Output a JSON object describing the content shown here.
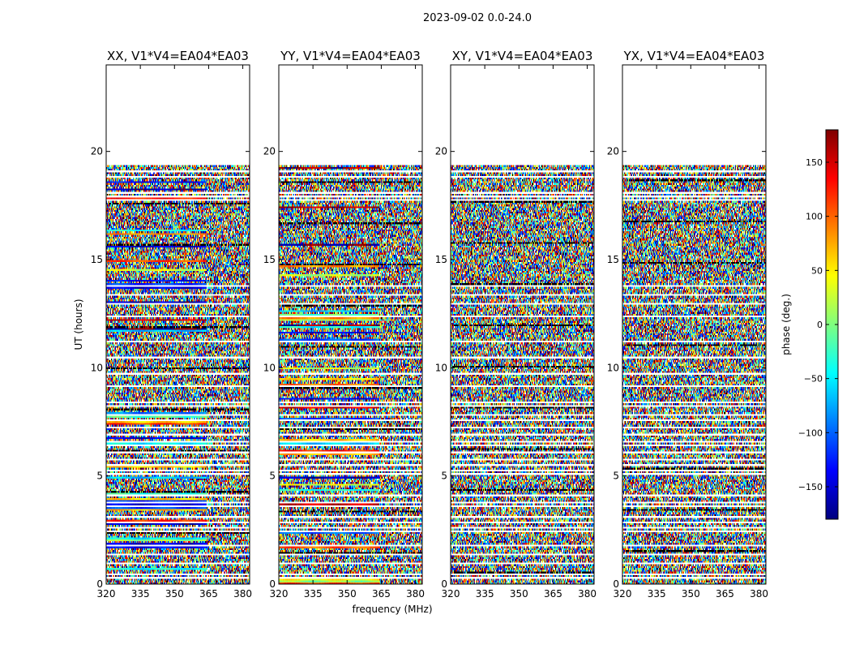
{
  "chart_data": {
    "type": "heatmap",
    "suptitle": "2023-09-02 0.0-24.0",
    "xlabel": "frequency (MHz)",
    "ylabel": "UT (hours)",
    "xlim": [
      320,
      383
    ],
    "ylim": [
      0,
      24
    ],
    "xticks": [
      320,
      335,
      350,
      365,
      380
    ],
    "yticks": [
      0,
      5,
      10,
      15,
      20
    ],
    "data_end_hours": 19.4,
    "flagged_rows_hours": [
      0.25,
      0.45,
      0.9,
      1.35,
      1.75,
      2.4,
      2.55,
      2.85,
      3.1,
      3.55,
      3.7,
      4.05,
      5.05,
      5.2,
      5.45,
      5.75,
      6.05,
      6.4,
      6.55,
      6.85,
      7.2,
      7.5,
      7.8,
      8.2,
      8.35,
      9.1,
      9.65,
      10.45,
      11.2,
      12.3,
      12.9,
      13.35,
      13.75,
      17.75,
      17.85,
      18.05,
      18.8,
      19.0
    ],
    "panels": [
      {
        "title": "XX, V1*V4=EA04*EA03",
        "noise_level": 0.75
      },
      {
        "title": "YY, V1*V4=EA04*EA03",
        "noise_level": 0.7
      },
      {
        "title": "XY, V1*V4=EA04*EA03",
        "noise_level": 1.0
      },
      {
        "title": "YX, V1*V4=EA04*EA03",
        "noise_level": 1.0
      }
    ],
    "colorbar": {
      "label": "phase (deg.)",
      "range": [
        -180,
        180
      ],
      "ticks": [
        -150,
        -100,
        -50,
        0,
        50,
        100,
        150
      ],
      "tick_labels": [
        "−150",
        "−100",
        "−50",
        "0",
        "50",
        "100",
        "150"
      ],
      "colormap": "jet",
      "colors": [
        "#00007f",
        "#0000ff",
        "#007fff",
        "#00ffff",
        "#7fff7f",
        "#ffff00",
        "#ff7f00",
        "#ff0000",
        "#7f0000"
      ]
    },
    "grid": false
  }
}
